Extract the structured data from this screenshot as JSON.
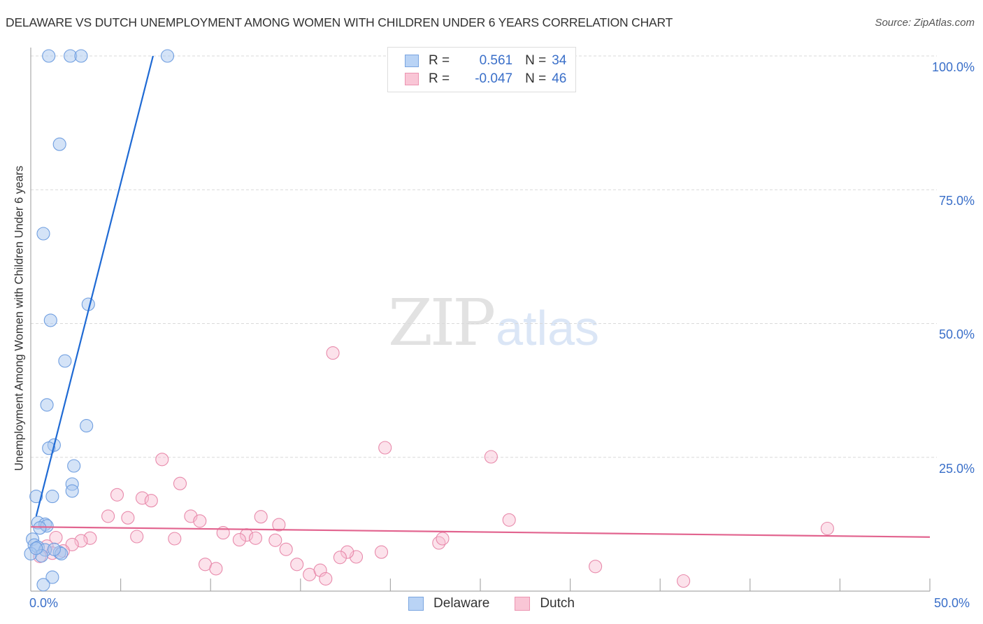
{
  "header": {
    "title": "DELAWARE VS DUTCH UNEMPLOYMENT AMONG WOMEN WITH CHILDREN UNDER 6 YEARS CORRELATION CHART",
    "source": "Source: ZipAtlas.com"
  },
  "watermark": {
    "zip": "ZIP",
    "atlas": "atlas"
  },
  "legend_top": {
    "rows": [
      {
        "r_label": "R =",
        "r_value": "0.561",
        "n_label": "N =",
        "n_value": "34",
        "swatch_fill": "#b9d3f5",
        "swatch_border": "#7aa5e0"
      },
      {
        "r_label": "R =",
        "r_value": "-0.047",
        "n_label": "N =",
        "n_value": "46",
        "swatch_fill": "#f9c6d6",
        "swatch_border": "#ec94b1"
      }
    ]
  },
  "legend_bottom": {
    "items": [
      {
        "label": "Delaware",
        "fill": "#b9d3f5",
        "border": "#7aa5e0"
      },
      {
        "label": "Dutch",
        "fill": "#f9c6d6",
        "border": "#ec94b1"
      }
    ]
  },
  "axes": {
    "y_label": "Unemployment Among Women with Children Under 6 years",
    "y_ticks": [
      "100.0%",
      "75.0%",
      "50.0%",
      "25.0%"
    ],
    "x_ticks": [
      "0.0%",
      "50.0%"
    ]
  },
  "colors": {
    "delaware_line": "#1f6ad4",
    "dutch_line": "#e2648f",
    "tick_text": "#3a6fc9",
    "grid": "#d9d9d9"
  },
  "chart_data": {
    "type": "scatter",
    "title": "DELAWARE VS DUTCH UNEMPLOYMENT AMONG WOMEN WITH CHILDREN UNDER 6 YEARS CORRELATION CHART",
    "xlabel": "",
    "ylabel": "Unemployment Among Women with Children Under 6 years",
    "xlim": [
      0,
      50
    ],
    "ylim": [
      0,
      100
    ],
    "grid": true,
    "legend_position": "bottom",
    "series": [
      {
        "name": "Delaware",
        "R": 0.561,
        "N": 34,
        "color": "#7aa5e0",
        "trendline": {
          "x": [
            0.3,
            6.8
          ],
          "y": [
            14,
            100
          ]
        },
        "points": [
          [
            1.0,
            100
          ],
          [
            2.2,
            100
          ],
          [
            2.8,
            100
          ],
          [
            7.6,
            100
          ],
          [
            1.6,
            83.5
          ],
          [
            0.7,
            66.8
          ],
          [
            3.2,
            53.6
          ],
          [
            1.1,
            50.6
          ],
          [
            1.9,
            43
          ],
          [
            0.9,
            34.8
          ],
          [
            3.1,
            30.9
          ],
          [
            1.3,
            27.3
          ],
          [
            1.0,
            26.7
          ],
          [
            2.4,
            23.4
          ],
          [
            2.3,
            20
          ],
          [
            2.3,
            18.7
          ],
          [
            0.3,
            17.7
          ],
          [
            1.2,
            17.7
          ],
          [
            0.4,
            12.8
          ],
          [
            0.8,
            12.5
          ],
          [
            0.9,
            12.2
          ],
          [
            0.5,
            11.8
          ],
          [
            0.1,
            9.7
          ],
          [
            0.2,
            8.6
          ],
          [
            0.4,
            8.2
          ],
          [
            0.8,
            7.7
          ],
          [
            1.6,
            7.2
          ],
          [
            1.7,
            7.0
          ],
          [
            0.6,
            6.6
          ],
          [
            1.3,
            7.8
          ],
          [
            0.0,
            7.0
          ],
          [
            1.2,
            2.6
          ],
          [
            0.7,
            1.2
          ],
          [
            0.3,
            8.0
          ]
        ]
      },
      {
        "name": "Dutch",
        "R": -0.047,
        "N": 46,
        "color": "#ec94b1",
        "trendline": {
          "x": [
            0,
            50
          ],
          "y": [
            12.0,
            10.1
          ]
        },
        "points": [
          [
            16.8,
            44.5
          ],
          [
            19.7,
            26.8
          ],
          [
            25.6,
            25.1
          ],
          [
            7.3,
            24.6
          ],
          [
            8.3,
            20.1
          ],
          [
            4.8,
            18
          ],
          [
            6.2,
            17.4
          ],
          [
            6.7,
            16.9
          ],
          [
            4.3,
            14
          ],
          [
            5.4,
            13.7
          ],
          [
            8.9,
            14
          ],
          [
            9.4,
            13.1
          ],
          [
            12.8,
            13.9
          ],
          [
            13.8,
            12.4
          ],
          [
            26.6,
            13.3
          ],
          [
            44.3,
            11.7
          ],
          [
            10.7,
            10.9
          ],
          [
            12.0,
            10.5
          ],
          [
            11.6,
            9.6
          ],
          [
            12.5,
            9.9
          ],
          [
            13.6,
            9.5
          ],
          [
            5.9,
            10.2
          ],
          [
            8.0,
            9.8
          ],
          [
            3.3,
            9.9
          ],
          [
            2.8,
            9.4
          ],
          [
            2.3,
            8.7
          ],
          [
            1.4,
            10
          ],
          [
            0.9,
            8.4
          ],
          [
            1.8,
            7.5
          ],
          [
            0.5,
            6.5
          ],
          [
            1.2,
            7.1
          ],
          [
            22.7,
            9.0
          ],
          [
            22.9,
            9.8
          ],
          [
            18.1,
            6.4
          ],
          [
            17.6,
            7.3
          ],
          [
            17.2,
            6.3
          ],
          [
            19.5,
            7.3
          ],
          [
            14.2,
            7.8
          ],
          [
            14.8,
            5.0
          ],
          [
            9.7,
            5.0
          ],
          [
            10.3,
            4.2
          ],
          [
            15.5,
            3.1
          ],
          [
            16.1,
            3.9
          ],
          [
            16.4,
            2.3
          ],
          [
            31.4,
            4.6
          ],
          [
            36.3,
            1.9
          ]
        ]
      }
    ]
  }
}
